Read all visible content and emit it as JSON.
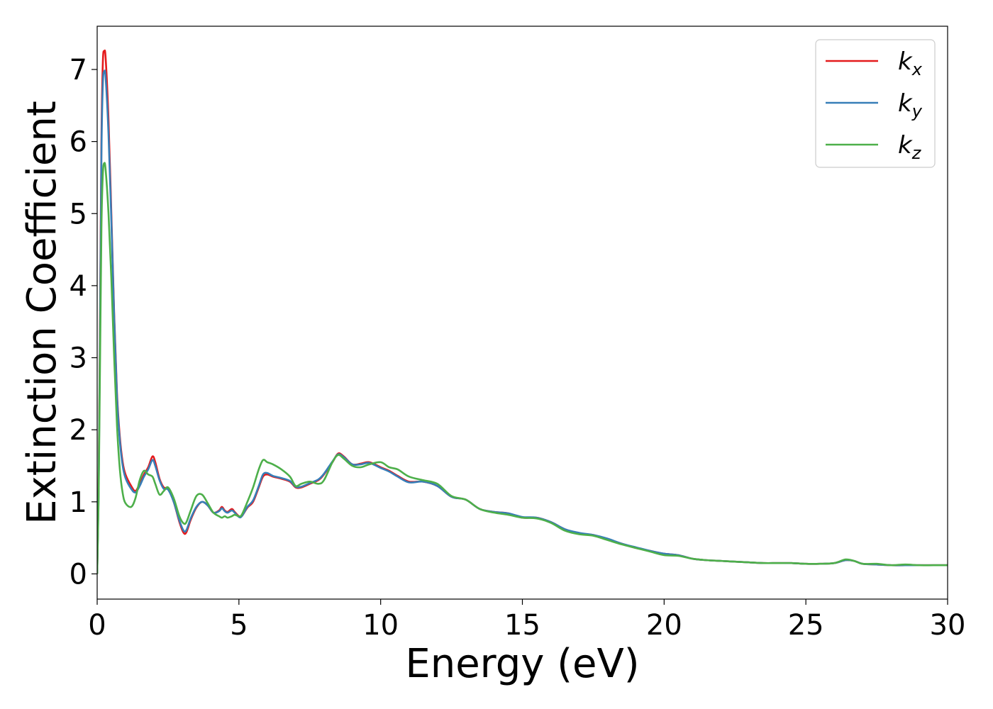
{
  "chart_data": {
    "type": "line",
    "title": "",
    "xlabel": "Energy (eV)",
    "ylabel": "Extinction Coefficient",
    "xlim": [
      0,
      30
    ],
    "ylim": [
      -0.35,
      7.6
    ],
    "xticks": [
      0,
      5,
      10,
      15,
      20,
      25,
      30
    ],
    "yticks": [
      0,
      1,
      2,
      3,
      4,
      5,
      6,
      7
    ],
    "grid": false,
    "legend_position": "top-right",
    "series": [
      {
        "name": "k",
        "subscript": "x",
        "color": "#e41a1c",
        "points": [
          [
            0,
            0
          ],
          [
            0.05,
            1.2
          ],
          [
            0.1,
            3.5
          ],
          [
            0.15,
            6.0
          ],
          [
            0.2,
            7.1
          ],
          [
            0.25,
            7.25
          ],
          [
            0.3,
            7.15
          ],
          [
            0.4,
            6.3
          ],
          [
            0.5,
            5.0
          ],
          [
            0.6,
            3.6
          ],
          [
            0.7,
            2.5
          ],
          [
            0.8,
            1.9
          ],
          [
            0.9,
            1.55
          ],
          [
            1.0,
            1.38
          ],
          [
            1.2,
            1.22
          ],
          [
            1.35,
            1.15
          ],
          [
            1.5,
            1.25
          ],
          [
            1.65,
            1.38
          ],
          [
            1.8,
            1.48
          ],
          [
            1.95,
            1.63
          ],
          [
            2.05,
            1.55
          ],
          [
            2.2,
            1.32
          ],
          [
            2.35,
            1.2
          ],
          [
            2.5,
            1.18
          ],
          [
            2.7,
            1.0
          ],
          [
            2.9,
            0.72
          ],
          [
            3.05,
            0.57
          ],
          [
            3.15,
            0.58
          ],
          [
            3.3,
            0.75
          ],
          [
            3.5,
            0.92
          ],
          [
            3.7,
            1.0
          ],
          [
            3.9,
            0.95
          ],
          [
            4.1,
            0.85
          ],
          [
            4.3,
            0.88
          ],
          [
            4.4,
            0.93
          ],
          [
            4.5,
            0.88
          ],
          [
            4.6,
            0.86
          ],
          [
            4.75,
            0.9
          ],
          [
            4.85,
            0.86
          ],
          [
            5.0,
            0.8
          ],
          [
            5.1,
            0.8
          ],
          [
            5.3,
            0.92
          ],
          [
            5.5,
            1.0
          ],
          [
            5.7,
            1.2
          ],
          [
            5.85,
            1.35
          ],
          [
            6.0,
            1.38
          ],
          [
            6.2,
            1.35
          ],
          [
            6.5,
            1.32
          ],
          [
            6.8,
            1.28
          ],
          [
            7.0,
            1.2
          ],
          [
            7.2,
            1.2
          ],
          [
            7.5,
            1.25
          ],
          [
            7.8,
            1.3
          ],
          [
            8.0,
            1.38
          ],
          [
            8.3,
            1.55
          ],
          [
            8.5,
            1.67
          ],
          [
            8.7,
            1.63
          ],
          [
            9.0,
            1.52
          ],
          [
            9.3,
            1.53
          ],
          [
            9.6,
            1.55
          ],
          [
            10.0,
            1.48
          ],
          [
            10.3,
            1.43
          ],
          [
            10.6,
            1.36
          ],
          [
            11.0,
            1.28
          ],
          [
            11.5,
            1.28
          ],
          [
            12.0,
            1.22
          ],
          [
            12.5,
            1.07
          ],
          [
            13.0,
            1.03
          ],
          [
            13.5,
            0.9
          ],
          [
            14.0,
            0.86
          ],
          [
            14.5,
            0.84
          ],
          [
            15.0,
            0.78
          ],
          [
            15.5,
            0.78
          ],
          [
            16.0,
            0.72
          ],
          [
            16.5,
            0.62
          ],
          [
            17.0,
            0.56
          ],
          [
            17.5,
            0.54
          ],
          [
            18.0,
            0.48
          ],
          [
            18.5,
            0.42
          ],
          [
            19.0,
            0.36
          ],
          [
            19.5,
            0.32
          ],
          [
            20.0,
            0.28
          ],
          [
            20.5,
            0.26
          ],
          [
            21.0,
            0.21
          ],
          [
            21.5,
            0.19
          ],
          [
            22.0,
            0.18
          ],
          [
            22.5,
            0.17
          ],
          [
            23.0,
            0.16
          ],
          [
            23.5,
            0.15
          ],
          [
            24.0,
            0.15
          ],
          [
            24.5,
            0.15
          ],
          [
            25.0,
            0.14
          ],
          [
            25.5,
            0.14
          ],
          [
            26.0,
            0.15
          ],
          [
            26.4,
            0.19
          ],
          [
            26.7,
            0.18
          ],
          [
            27.0,
            0.14
          ],
          [
            27.5,
            0.13
          ],
          [
            28.0,
            0.12
          ],
          [
            28.5,
            0.12
          ],
          [
            29.0,
            0.12
          ],
          [
            29.5,
            0.12
          ],
          [
            30.0,
            0.12
          ]
        ]
      },
      {
        "name": "k",
        "subscript": "y",
        "color": "#377eb8",
        "points": [
          [
            0,
            0
          ],
          [
            0.05,
            1.1
          ],
          [
            0.1,
            3.3
          ],
          [
            0.15,
            5.8
          ],
          [
            0.2,
            6.8
          ],
          [
            0.25,
            6.97
          ],
          [
            0.3,
            6.88
          ],
          [
            0.4,
            6.1
          ],
          [
            0.5,
            4.9
          ],
          [
            0.6,
            3.55
          ],
          [
            0.7,
            2.45
          ],
          [
            0.8,
            1.85
          ],
          [
            0.9,
            1.5
          ],
          [
            1.0,
            1.33
          ],
          [
            1.2,
            1.18
          ],
          [
            1.35,
            1.13
          ],
          [
            1.5,
            1.22
          ],
          [
            1.65,
            1.35
          ],
          [
            1.8,
            1.45
          ],
          [
            1.95,
            1.58
          ],
          [
            2.05,
            1.5
          ],
          [
            2.2,
            1.3
          ],
          [
            2.35,
            1.18
          ],
          [
            2.5,
            1.17
          ],
          [
            2.7,
            1.0
          ],
          [
            2.9,
            0.74
          ],
          [
            3.05,
            0.6
          ],
          [
            3.15,
            0.61
          ],
          [
            3.3,
            0.77
          ],
          [
            3.5,
            0.93
          ],
          [
            3.7,
            1.0
          ],
          [
            3.9,
            0.95
          ],
          [
            4.1,
            0.85
          ],
          [
            4.3,
            0.87
          ],
          [
            4.4,
            0.91
          ],
          [
            4.5,
            0.87
          ],
          [
            4.6,
            0.85
          ],
          [
            4.75,
            0.88
          ],
          [
            4.85,
            0.85
          ],
          [
            5.0,
            0.79
          ],
          [
            5.1,
            0.8
          ],
          [
            5.3,
            0.93
          ],
          [
            5.5,
            1.02
          ],
          [
            5.7,
            1.22
          ],
          [
            5.85,
            1.38
          ],
          [
            6.0,
            1.4
          ],
          [
            6.2,
            1.36
          ],
          [
            6.5,
            1.33
          ],
          [
            6.8,
            1.29
          ],
          [
            7.0,
            1.21
          ],
          [
            7.2,
            1.21
          ],
          [
            7.5,
            1.26
          ],
          [
            7.8,
            1.31
          ],
          [
            8.0,
            1.39
          ],
          [
            8.3,
            1.56
          ],
          [
            8.5,
            1.66
          ],
          [
            8.7,
            1.62
          ],
          [
            9.0,
            1.52
          ],
          [
            9.3,
            1.52
          ],
          [
            9.6,
            1.54
          ],
          [
            10.0,
            1.47
          ],
          [
            10.3,
            1.42
          ],
          [
            10.6,
            1.35
          ],
          [
            11.0,
            1.27
          ],
          [
            11.5,
            1.28
          ],
          [
            12.0,
            1.22
          ],
          [
            12.5,
            1.07
          ],
          [
            13.0,
            1.03
          ],
          [
            13.5,
            0.9
          ],
          [
            14.0,
            0.86
          ],
          [
            14.5,
            0.84
          ],
          [
            15.0,
            0.79
          ],
          [
            15.5,
            0.78
          ],
          [
            16.0,
            0.72
          ],
          [
            16.5,
            0.62
          ],
          [
            17.0,
            0.57
          ],
          [
            17.5,
            0.54
          ],
          [
            18.0,
            0.49
          ],
          [
            18.5,
            0.42
          ],
          [
            19.0,
            0.37
          ],
          [
            19.5,
            0.32
          ],
          [
            20.0,
            0.28
          ],
          [
            20.5,
            0.26
          ],
          [
            21.0,
            0.21
          ],
          [
            21.5,
            0.19
          ],
          [
            22.0,
            0.18
          ],
          [
            22.5,
            0.17
          ],
          [
            23.0,
            0.16
          ],
          [
            23.5,
            0.15
          ],
          [
            24.0,
            0.15
          ],
          [
            24.5,
            0.15
          ],
          [
            25.0,
            0.14
          ],
          [
            25.5,
            0.14
          ],
          [
            26.0,
            0.15
          ],
          [
            26.4,
            0.19
          ],
          [
            26.7,
            0.18
          ],
          [
            27.0,
            0.14
          ],
          [
            27.5,
            0.13
          ],
          [
            28.0,
            0.12
          ],
          [
            28.5,
            0.12
          ],
          [
            29.0,
            0.12
          ],
          [
            29.5,
            0.12
          ],
          [
            30.0,
            0.12
          ]
        ]
      },
      {
        "name": "k",
        "subscript": "z",
        "color": "#4daf4a",
        "points": [
          [
            0,
            0
          ],
          [
            0.05,
            1.0
          ],
          [
            0.1,
            2.9
          ],
          [
            0.15,
            4.8
          ],
          [
            0.2,
            5.55
          ],
          [
            0.25,
            5.7
          ],
          [
            0.3,
            5.6
          ],
          [
            0.4,
            5.0
          ],
          [
            0.5,
            4.1
          ],
          [
            0.6,
            3.0
          ],
          [
            0.7,
            2.05
          ],
          [
            0.8,
            1.45
          ],
          [
            0.9,
            1.12
          ],
          [
            1.0,
            0.98
          ],
          [
            1.2,
            0.93
          ],
          [
            1.35,
            1.05
          ],
          [
            1.5,
            1.3
          ],
          [
            1.65,
            1.43
          ],
          [
            1.8,
            1.38
          ],
          [
            1.95,
            1.35
          ],
          [
            2.05,
            1.25
          ],
          [
            2.2,
            1.1
          ],
          [
            2.35,
            1.15
          ],
          [
            2.5,
            1.2
          ],
          [
            2.7,
            1.05
          ],
          [
            2.9,
            0.8
          ],
          [
            3.05,
            0.7
          ],
          [
            3.15,
            0.72
          ],
          [
            3.3,
            0.88
          ],
          [
            3.5,
            1.08
          ],
          [
            3.7,
            1.1
          ],
          [
            3.9,
            0.98
          ],
          [
            4.1,
            0.85
          ],
          [
            4.3,
            0.8
          ],
          [
            4.4,
            0.78
          ],
          [
            4.5,
            0.8
          ],
          [
            4.6,
            0.78
          ],
          [
            4.75,
            0.8
          ],
          [
            4.85,
            0.82
          ],
          [
            5.0,
            0.8
          ],
          [
            5.1,
            0.82
          ],
          [
            5.3,
            1.0
          ],
          [
            5.5,
            1.2
          ],
          [
            5.7,
            1.45
          ],
          [
            5.85,
            1.58
          ],
          [
            6.0,
            1.55
          ],
          [
            6.2,
            1.52
          ],
          [
            6.5,
            1.45
          ],
          [
            6.8,
            1.35
          ],
          [
            7.0,
            1.22
          ],
          [
            7.2,
            1.25
          ],
          [
            7.5,
            1.28
          ],
          [
            7.8,
            1.25
          ],
          [
            8.0,
            1.3
          ],
          [
            8.3,
            1.55
          ],
          [
            8.5,
            1.65
          ],
          [
            8.7,
            1.6
          ],
          [
            9.0,
            1.5
          ],
          [
            9.3,
            1.48
          ],
          [
            9.6,
            1.52
          ],
          [
            10.0,
            1.55
          ],
          [
            10.3,
            1.48
          ],
          [
            10.6,
            1.45
          ],
          [
            11.0,
            1.35
          ],
          [
            11.5,
            1.3
          ],
          [
            12.0,
            1.25
          ],
          [
            12.5,
            1.08
          ],
          [
            13.0,
            1.03
          ],
          [
            13.5,
            0.9
          ],
          [
            14.0,
            0.85
          ],
          [
            14.5,
            0.82
          ],
          [
            15.0,
            0.78
          ],
          [
            15.5,
            0.77
          ],
          [
            16.0,
            0.71
          ],
          [
            16.5,
            0.6
          ],
          [
            17.0,
            0.55
          ],
          [
            17.5,
            0.53
          ],
          [
            18.0,
            0.47
          ],
          [
            18.5,
            0.41
          ],
          [
            19.0,
            0.36
          ],
          [
            19.5,
            0.31
          ],
          [
            20.0,
            0.26
          ],
          [
            20.5,
            0.25
          ],
          [
            21.0,
            0.21
          ],
          [
            21.5,
            0.19
          ],
          [
            22.0,
            0.18
          ],
          [
            22.5,
            0.17
          ],
          [
            23.0,
            0.16
          ],
          [
            23.5,
            0.15
          ],
          [
            24.0,
            0.15
          ],
          [
            24.5,
            0.15
          ],
          [
            25.0,
            0.14
          ],
          [
            25.5,
            0.14
          ],
          [
            26.0,
            0.15
          ],
          [
            26.4,
            0.2
          ],
          [
            26.7,
            0.18
          ],
          [
            27.0,
            0.14
          ],
          [
            27.5,
            0.14
          ],
          [
            28.0,
            0.12
          ],
          [
            28.5,
            0.13
          ],
          [
            29.0,
            0.12
          ],
          [
            29.5,
            0.12
          ],
          [
            30.0,
            0.12
          ]
        ]
      }
    ]
  }
}
